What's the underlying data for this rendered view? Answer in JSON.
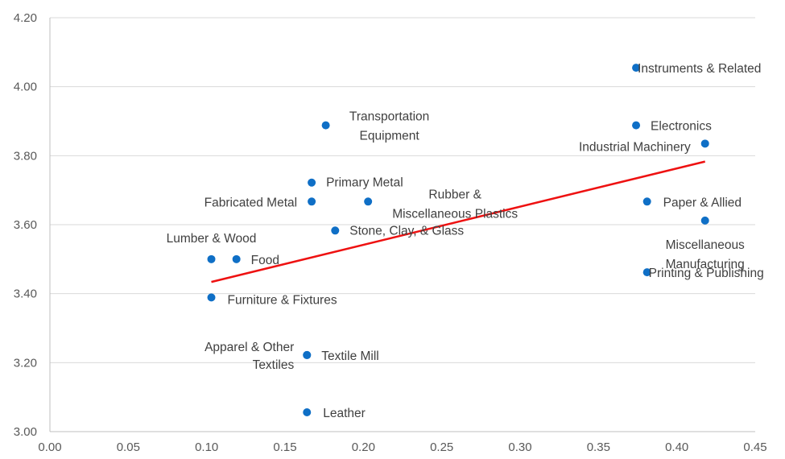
{
  "chart_data": {
    "type": "scatter",
    "title": "",
    "xlabel": "",
    "ylabel": "",
    "xlim": [
      0,
      0.45
    ],
    "ylim": [
      3.0,
      4.2
    ],
    "x_ticks": [
      "0.00",
      "0.05",
      "0.10",
      "0.15",
      "0.20",
      "0.25",
      "0.30",
      "0.35",
      "0.40",
      "0.45"
    ],
    "y_ticks": [
      "3.00",
      "3.20",
      "3.40",
      "3.60",
      "3.80",
      "4.00",
      "4.20"
    ],
    "grid": "horizontal",
    "legend": "none",
    "point_color": "#0f6fc6",
    "trend_color": "#ee1111",
    "points": [
      {
        "label": [
          "Instruments & Related"
        ],
        "x": 0.374,
        "y": 4.055
      },
      {
        "label": [
          "Electronics"
        ],
        "x": 0.374,
        "y": 3.888
      },
      {
        "label": [
          "Industrial Machinery"
        ],
        "x": 0.418,
        "y": 3.835
      },
      {
        "label": [
          "Transportation",
          "Equipment"
        ],
        "x": 0.176,
        "y": 3.888
      },
      {
        "label": [
          "Primary Metal"
        ],
        "x": 0.167,
        "y": 3.722
      },
      {
        "label": [
          "Fabricated Metal"
        ],
        "x": 0.167,
        "y": 3.667
      },
      {
        "label": [
          "Rubber &",
          "Miscellaneous Plastics"
        ],
        "x": 0.203,
        "y": 3.667
      },
      {
        "label": [
          "Stone, Clay, & Glass"
        ],
        "x": 0.182,
        "y": 3.583
      },
      {
        "label": [
          "Paper & Allied"
        ],
        "x": 0.381,
        "y": 3.667
      },
      {
        "label": [
          "Miscellaneous",
          "Manufacturing"
        ],
        "x": 0.418,
        "y": 3.612
      },
      {
        "label": [
          "Printing & Publishing"
        ],
        "x": 0.381,
        "y": 3.462
      },
      {
        "label": [
          "Lumber & Wood"
        ],
        "x": 0.103,
        "y": 3.5
      },
      {
        "label": [
          "Food"
        ],
        "x": 0.119,
        "y": 3.5
      },
      {
        "label": [
          "Furniture & Fixtures"
        ],
        "x": 0.103,
        "y": 3.389
      },
      {
        "label": [
          "Apparel & Other",
          "Textiles"
        ],
        "x": 0.164,
        "y": 3.222
      },
      {
        "label": [
          "Textile Mill"
        ],
        "x": 0.164,
        "y": 3.222
      },
      {
        "label": [
          "Leather"
        ],
        "x": 0.164,
        "y": 3.056
      }
    ],
    "trendline": {
      "x": [
        0.103,
        0.418
      ],
      "y": [
        3.434,
        3.783
      ]
    }
  }
}
